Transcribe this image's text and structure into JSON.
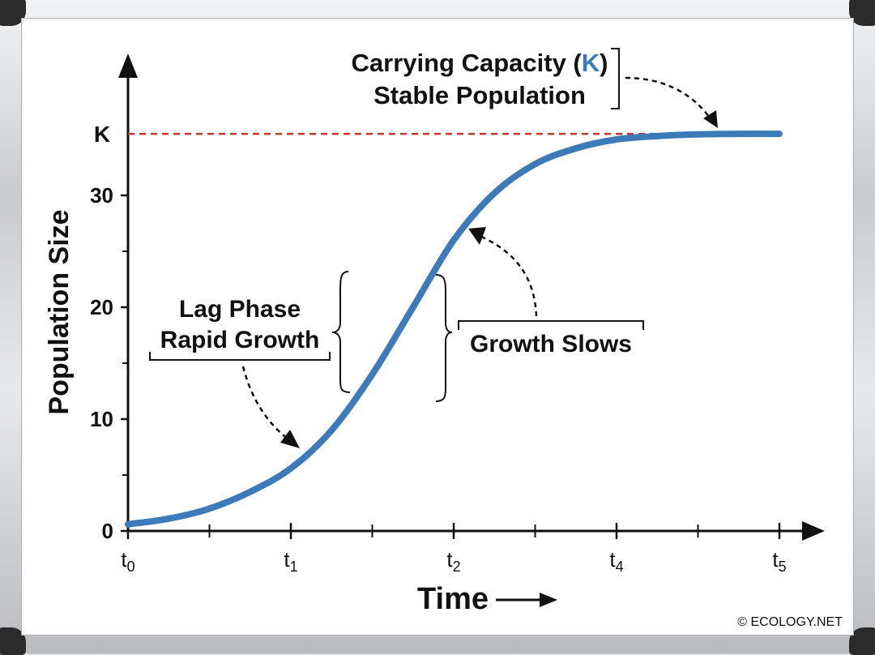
{
  "chart_data": {
    "type": "line",
    "xlabel": "Time",
    "ylabel": "Population Size",
    "x_ticks": [
      {
        "pos": 0,
        "base": "t",
        "sub": "0"
      },
      {
        "pos": 2,
        "base": "t",
        "sub": "1"
      },
      {
        "pos": 4,
        "base": "t",
        "sub": "2"
      },
      {
        "pos": 6,
        "base": "t",
        "sub": "4"
      },
      {
        "pos": 8,
        "base": "t",
        "sub": "5"
      }
    ],
    "x_minor_ticks": [
      1,
      3,
      5,
      7
    ],
    "y_ticks": [
      0,
      10,
      20,
      30
    ],
    "y_minor_ticks": [
      5,
      15,
      25
    ],
    "ylim": [
      0,
      40
    ],
    "xlim": [
      0,
      8
    ],
    "carrying_capacity": {
      "label": "K",
      "value": 35.5
    },
    "series": [
      {
        "x": [
          0,
          0.5,
          1,
          1.5,
          2,
          2.5,
          3,
          3.5,
          4,
          4.5,
          5,
          5.5,
          6,
          6.5,
          7,
          7.5,
          8
        ],
        "y": [
          0.6,
          1.1,
          2.0,
          3.5,
          5.6,
          9.0,
          14.0,
          20.0,
          26.0,
          30.2,
          32.8,
          34.2,
          35.0,
          35.3,
          35.45,
          35.5,
          35.5
        ]
      }
    ],
    "annotations": {
      "capacity_line1": "Carrying Capacity (",
      "capacity_k": "K",
      "capacity_line1_end": ")",
      "capacity_line2": "Stable Population",
      "lag_line1": "Lag Phase",
      "lag_line2": "Rapid Growth",
      "slows": "Growth Slows"
    },
    "grid": false,
    "legend": "none"
  },
  "footer": {
    "copyright": "© ECOLOGY.NET"
  },
  "colors": {
    "curve": "#3d7ab8",
    "capacity_line": "#c0392b",
    "k_blue": "#3d7ab8",
    "axis": "#111111"
  }
}
